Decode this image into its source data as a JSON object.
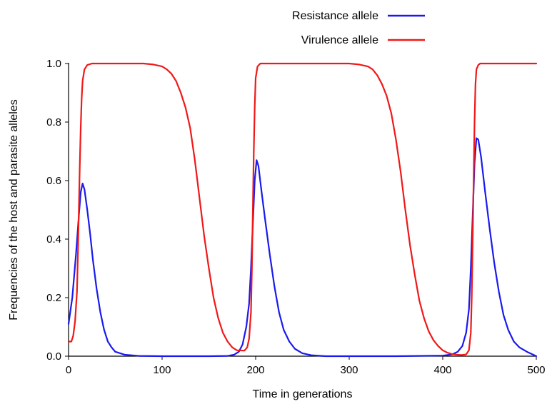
{
  "chart_data": {
    "type": "line",
    "title": "",
    "xlabel": "Time in generations",
    "ylabel": "Frequencies of the host and parasite alleles",
    "xlim": [
      0,
      500
    ],
    "ylim": [
      0,
      1.0
    ],
    "x_ticks": [
      0,
      100,
      200,
      300,
      400,
      500
    ],
    "y_ticks": [
      0.0,
      0.2,
      0.4,
      0.6,
      0.8,
      1.0
    ],
    "x_tick_labels": [
      "0",
      "100",
      "200",
      "300",
      "400",
      "500"
    ],
    "y_tick_labels": [
      "0.0",
      "0.2",
      "0.4",
      "0.6",
      "0.8",
      "1.0"
    ],
    "grid": false,
    "legend_position": "top-right",
    "series": [
      {
        "name": "Resistance allele",
        "color": "#1a1aee",
        "points": [
          [
            0,
            0.11
          ],
          [
            4,
            0.2
          ],
          [
            8,
            0.35
          ],
          [
            11,
            0.48
          ],
          [
            13,
            0.56
          ],
          [
            15,
            0.59
          ],
          [
            17,
            0.57
          ],
          [
            20,
            0.5
          ],
          [
            23,
            0.42
          ],
          [
            26,
            0.33
          ],
          [
            30,
            0.23
          ],
          [
            34,
            0.15
          ],
          [
            38,
            0.09
          ],
          [
            42,
            0.05
          ],
          [
            46,
            0.03
          ],
          [
            50,
            0.015
          ],
          [
            60,
            0.005
          ],
          [
            75,
            0.001
          ],
          [
            100,
            0.0
          ],
          [
            150,
            0.0
          ],
          [
            170,
            0.001
          ],
          [
            177,
            0.005
          ],
          [
            182,
            0.015
          ],
          [
            186,
            0.04
          ],
          [
            190,
            0.1
          ],
          [
            193,
            0.18
          ],
          [
            195,
            0.3
          ],
          [
            197,
            0.45
          ],
          [
            199,
            0.6
          ],
          [
            201,
            0.67
          ],
          [
            203,
            0.65
          ],
          [
            206,
            0.57
          ],
          [
            210,
            0.47
          ],
          [
            215,
            0.35
          ],
          [
            220,
            0.24
          ],
          [
            225,
            0.15
          ],
          [
            230,
            0.09
          ],
          [
            236,
            0.05
          ],
          [
            242,
            0.025
          ],
          [
            250,
            0.01
          ],
          [
            260,
            0.003
          ],
          [
            275,
            0.0
          ],
          [
            350,
            0.0
          ],
          [
            400,
            0.002
          ],
          [
            410,
            0.006
          ],
          [
            416,
            0.015
          ],
          [
            421,
            0.035
          ],
          [
            425,
            0.08
          ],
          [
            428,
            0.16
          ],
          [
            430,
            0.3
          ],
          [
            432,
            0.48
          ],
          [
            434,
            0.66
          ],
          [
            436,
            0.745
          ],
          [
            438,
            0.74
          ],
          [
            441,
            0.68
          ],
          [
            445,
            0.57
          ],
          [
            450,
            0.44
          ],
          [
            455,
            0.32
          ],
          [
            460,
            0.22
          ],
          [
            465,
            0.14
          ],
          [
            470,
            0.09
          ],
          [
            476,
            0.05
          ],
          [
            482,
            0.03
          ],
          [
            490,
            0.015
          ],
          [
            496,
            0.006
          ],
          [
            500,
            0.0
          ]
        ]
      },
      {
        "name": "Virulence allele",
        "color": "#f01818",
        "points": [
          [
            0,
            0.05
          ],
          [
            3,
            0.05
          ],
          [
            5,
            0.07
          ],
          [
            7,
            0.12
          ],
          [
            9,
            0.22
          ],
          [
            10,
            0.35
          ],
          [
            11,
            0.5
          ],
          [
            12,
            0.65
          ],
          [
            13,
            0.78
          ],
          [
            14,
            0.88
          ],
          [
            15,
            0.94
          ],
          [
            17,
            0.98
          ],
          [
            20,
            0.995
          ],
          [
            25,
            1.0
          ],
          [
            80,
            1.0
          ],
          [
            90,
            0.997
          ],
          [
            100,
            0.99
          ],
          [
            105,
            0.98
          ],
          [
            110,
            0.965
          ],
          [
            115,
            0.94
          ],
          [
            120,
            0.9
          ],
          [
            125,
            0.85
          ],
          [
            130,
            0.78
          ],
          [
            135,
            0.67
          ],
          [
            140,
            0.54
          ],
          [
            145,
            0.41
          ],
          [
            150,
            0.3
          ],
          [
            155,
            0.2
          ],
          [
            160,
            0.13
          ],
          [
            165,
            0.08
          ],
          [
            170,
            0.05
          ],
          [
            175,
            0.03
          ],
          [
            180,
            0.02
          ],
          [
            188,
            0.019
          ],
          [
            191,
            0.03
          ],
          [
            193,
            0.06
          ],
          [
            195,
            0.15
          ],
          [
            196,
            0.3
          ],
          [
            197,
            0.5
          ],
          [
            198,
            0.7
          ],
          [
            199,
            0.85
          ],
          [
            200,
            0.95
          ],
          [
            202,
            0.99
          ],
          [
            205,
            1.0
          ],
          [
            300,
            1.0
          ],
          [
            310,
            0.997
          ],
          [
            320,
            0.99
          ],
          [
            325,
            0.98
          ],
          [
            330,
            0.96
          ],
          [
            335,
            0.93
          ],
          [
            340,
            0.89
          ],
          [
            345,
            0.83
          ],
          [
            350,
            0.74
          ],
          [
            355,
            0.63
          ],
          [
            360,
            0.5
          ],
          [
            365,
            0.38
          ],
          [
            370,
            0.28
          ],
          [
            375,
            0.19
          ],
          [
            380,
            0.13
          ],
          [
            385,
            0.085
          ],
          [
            390,
            0.055
          ],
          [
            395,
            0.035
          ],
          [
            400,
            0.02
          ],
          [
            405,
            0.012
          ],
          [
            410,
            0.007
          ],
          [
            415,
            0.005
          ],
          [
            420,
            0.004
          ],
          [
            425,
            0.006
          ],
          [
            428,
            0.02
          ],
          [
            430,
            0.08
          ],
          [
            431,
            0.2
          ],
          [
            432,
            0.4
          ],
          [
            433,
            0.6
          ],
          [
            434,
            0.8
          ],
          [
            435,
            0.93
          ],
          [
            436,
            0.98
          ],
          [
            438,
            0.995
          ],
          [
            440,
            1.0
          ],
          [
            500,
            1.0
          ]
        ]
      }
    ]
  }
}
